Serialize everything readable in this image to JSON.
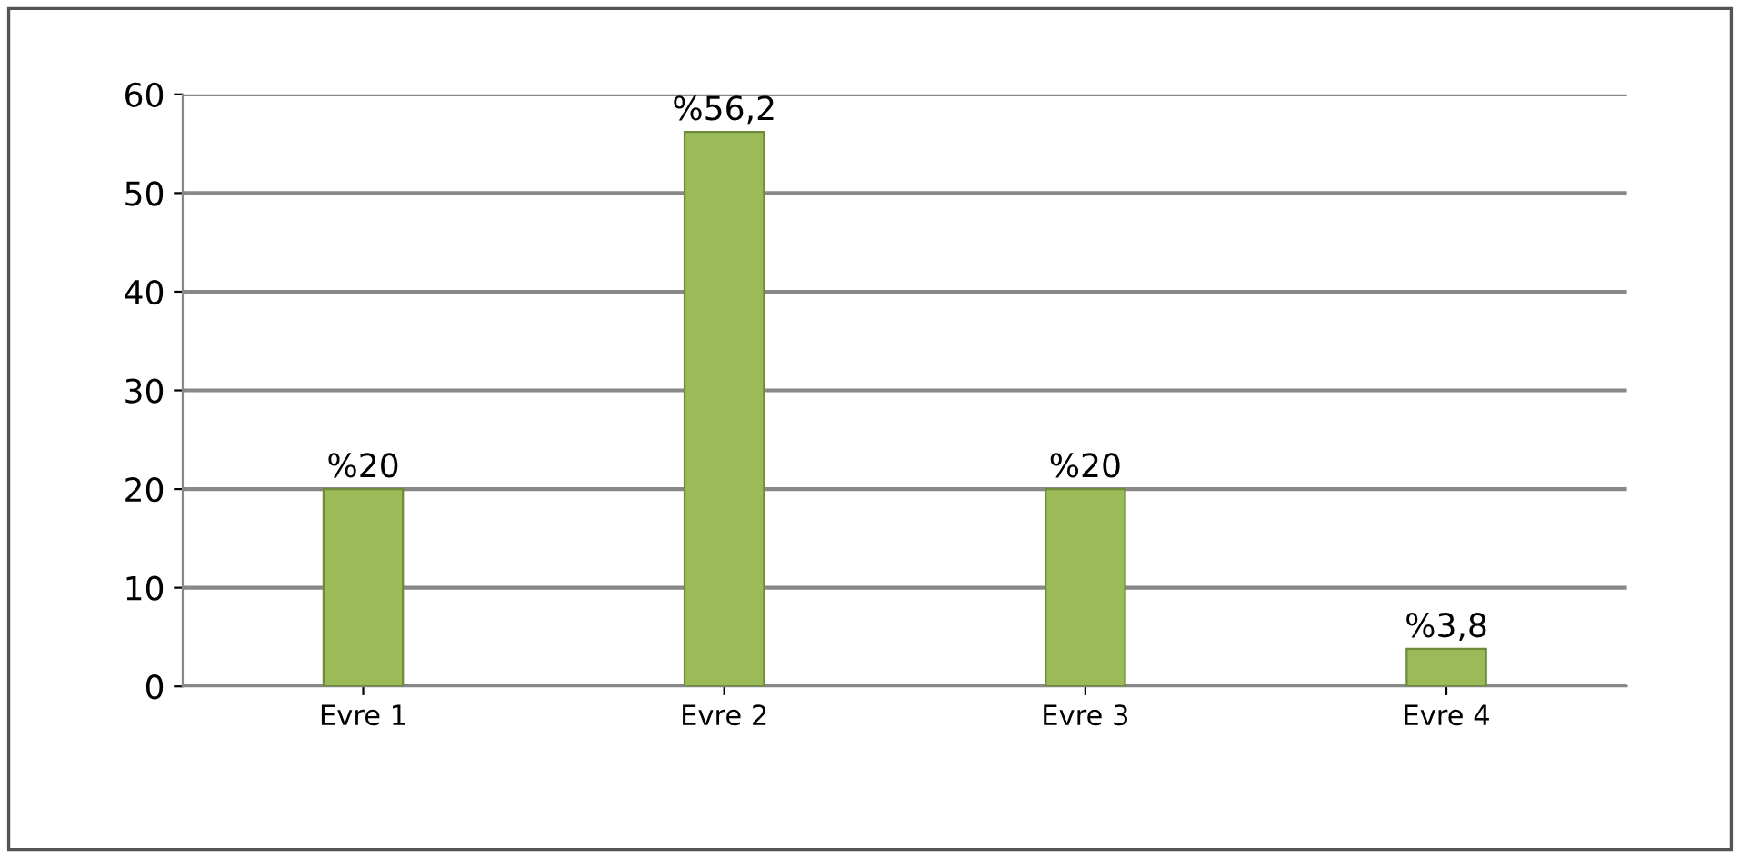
{
  "chart_data": {
    "type": "bar",
    "categories": [
      "Evre 1",
      "Evre 2",
      "Evre 3",
      "Evre 4"
    ],
    "values": [
      20,
      56.2,
      20,
      3.8
    ],
    "value_labels": [
      "%20",
      "%56,2",
      "%20",
      "%3,8"
    ],
    "color": "#9bbb59",
    "ylim": [
      0,
      60
    ],
    "yticks": [
      0,
      10,
      20,
      30,
      40,
      50,
      60
    ],
    "grid": "y"
  }
}
